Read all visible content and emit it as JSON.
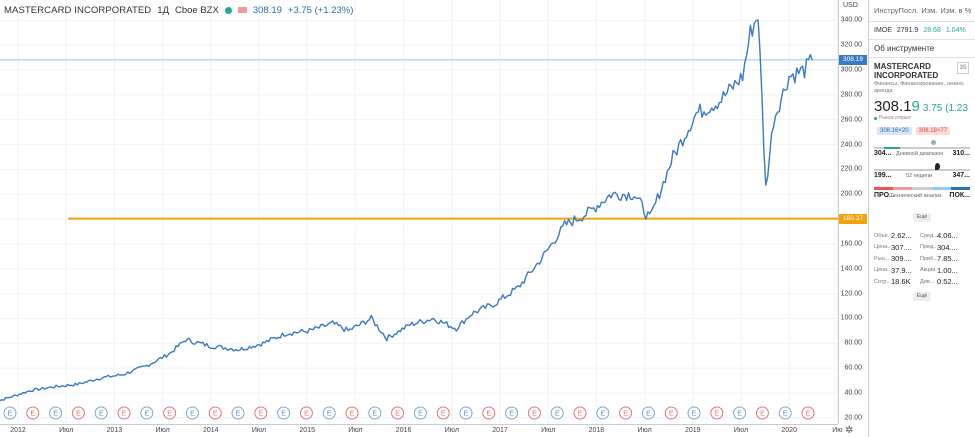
{
  "header": {
    "symbol": "MASTERCARD INCORPORATED",
    "interval": "1Д",
    "exchange": "Cboe BZX",
    "price": "308.19",
    "change": "+3.75 (+1.23%)"
  },
  "axis": {
    "currency": "USD",
    "y_ticks": [
      "340.00",
      "320.00",
      "300.00",
      "280.00",
      "260.00",
      "240.00",
      "220.00",
      "200.00",
      "180.00",
      "160.00",
      "140.00",
      "120.00",
      "100.00",
      "80.00",
      "60.00",
      "40.00",
      "20.00"
    ],
    "price_label": "308.19",
    "level_label": "180.37",
    "x_ticks": [
      "2012",
      "Июл",
      "2013",
      "Июл",
      "2014",
      "Июл",
      "2015",
      "Июл",
      "2016",
      "Июл",
      "2017",
      "Июл",
      "2018",
      "Июл",
      "2019",
      "Июл",
      "2020",
      "Ию"
    ]
  },
  "events": {
    "earnings_label": "E",
    "marker_count": 36
  },
  "chart_data": {
    "type": "line",
    "series": [
      {
        "x": [
          "2011-11",
          "2012-01",
          "2012-04",
          "2012-07",
          "2012-10",
          "2013-01",
          "2013-04",
          "2013-07",
          "2013-10",
          "2013-12",
          "2014-03",
          "2014-07",
          "2014-10",
          "2015-01",
          "2015-04",
          "2015-07",
          "2015-09",
          "2015-12",
          "2016-02",
          "2016-05",
          "2016-08",
          "2016-11",
          "2017-01",
          "2017-04",
          "2017-07",
          "2017-10",
          "2018-01",
          "2018-04",
          "2018-07",
          "2018-10",
          "2018-12",
          "2019-03",
          "2019-06",
          "2019-09",
          "2019-12",
          "2020-01",
          "2020-02",
          "2020-03",
          "2020-04",
          "2020-06",
          "2020-08",
          "2020-09"
        ],
        "values": [
          32,
          36,
          42,
          45,
          47,
          52,
          55,
          62,
          72,
          83,
          78,
          75,
          80,
          88,
          90,
          96,
          90,
          100,
          84,
          95,
          100,
          92,
          104,
          112,
          125,
          148,
          175,
          185,
          200,
          200,
          180,
          230,
          265,
          275,
          295,
          330,
          345,
          205,
          260,
          295,
          300,
          308
        ]
      }
    ],
    "ylim": [
      15,
      350
    ],
    "horizontal_line": 180.37,
    "last_price": 308.19,
    "grid": true,
    "line_color": "#3a79c4",
    "level_color": "#f0a30a"
  },
  "panel": {
    "toolbar": {
      "a": "ИнструПосл.",
      "b": "Изм.",
      "c": "Изм. в %"
    },
    "index": {
      "name": "IMOE",
      "value": "2791.9",
      "change": "28.68",
      "pct": "1.04%"
    },
    "about": "Об инструменте",
    "name": "MASTERCARD INCORPORATED",
    "sector": "Финансы: Финансирование, лизинг, аренда",
    "price_main": "308.1",
    "price_last": "9",
    "change": "3.75 (1.23",
    "status": "Рынок открыт",
    "bid": "308.16×20",
    "ask": "308.18×77",
    "day_low": "304...",
    "day_label": "Дневной диапазон",
    "day_high": "310...",
    "wk_low": "199...",
    "wk_label": "52 недели",
    "wk_high": "347...",
    "tech_lo": "ПРО...",
    "tech_label": "Технический анализ",
    "tech_hi": "ПОК...",
    "more": "Ещё",
    "stats": [
      {
        "k": "Объё...",
        "v": "2.62...",
        "k2": "Сред...",
        "v2": "4.06..."
      },
      {
        "k": "Цена...",
        "v": "307....",
        "k2": "Пред...",
        "v2": "304...."
      },
      {
        "k": "Рын...",
        "v": "309....",
        "k2": "Приб...",
        "v2": "7.85..."
      },
      {
        "k": "Цена...",
        "v": "37.9...",
        "k2": "Акции...",
        "v2": "1.00..."
      },
      {
        "k": "Сотр...",
        "v": "18.6K",
        "k2": "Див...",
        "v2": "0.52..."
      }
    ],
    "more2": "Ещё"
  },
  "colors": {
    "accent": "#3a79c4",
    "level": "#f0a30a",
    "up": "#26a69a",
    "down": "#ef5350"
  }
}
